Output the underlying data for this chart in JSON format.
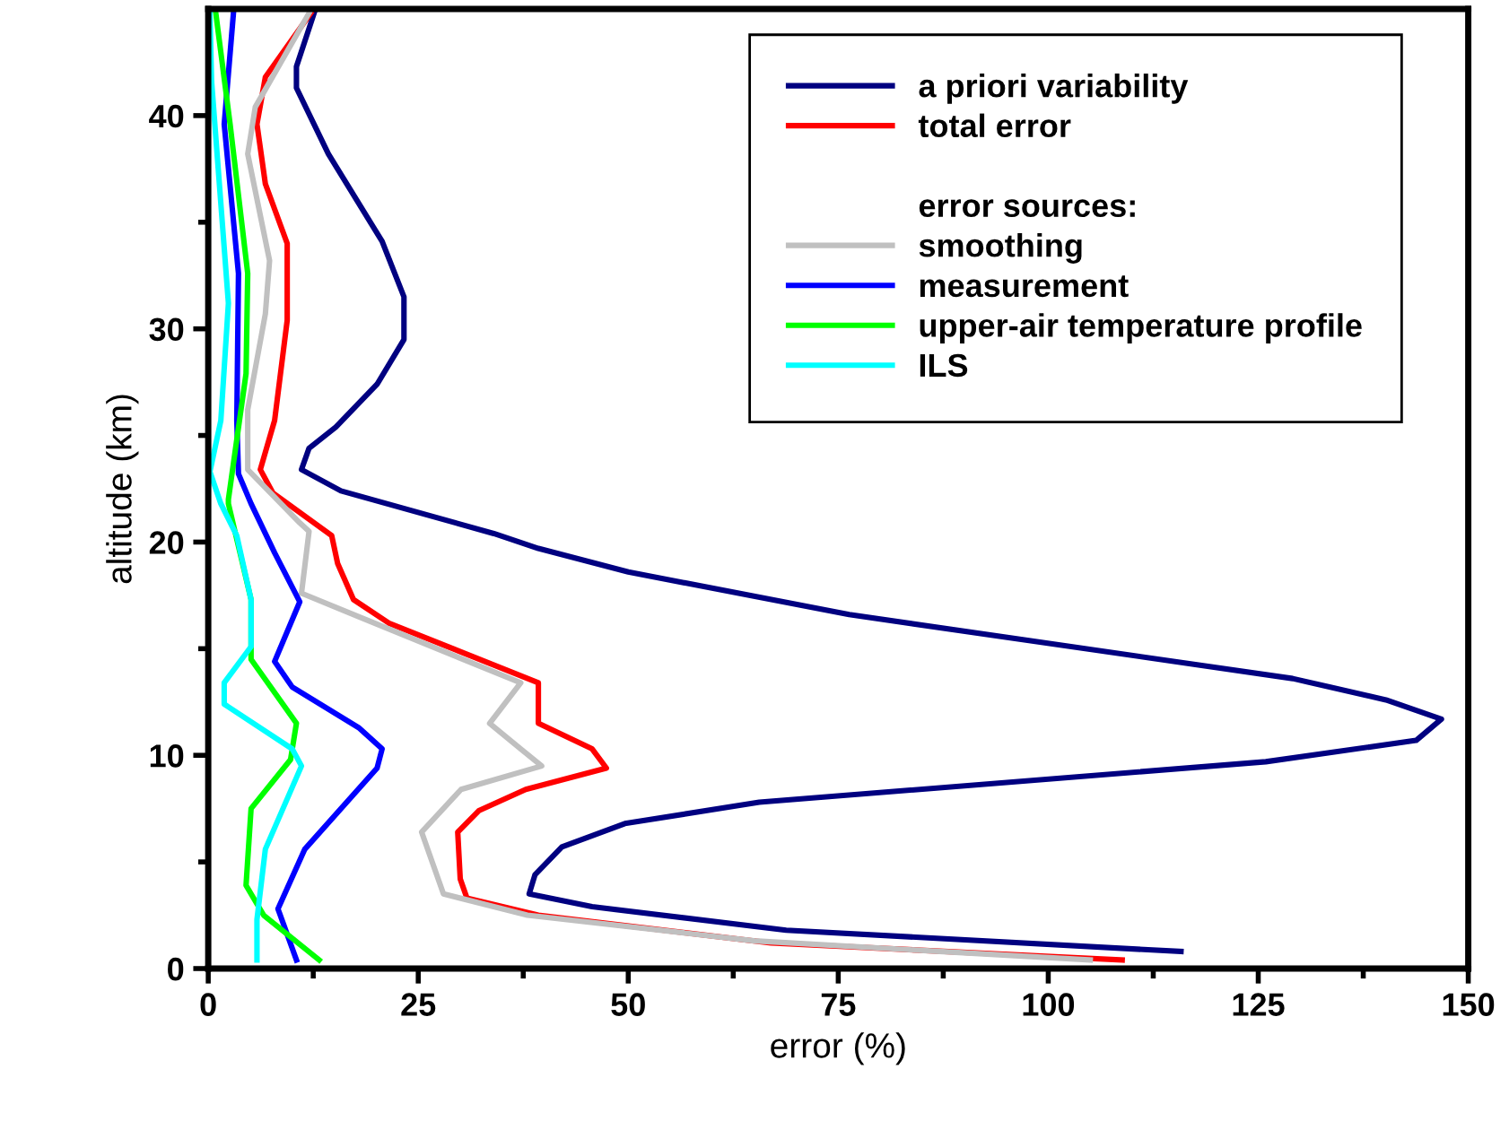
{
  "chart_data": {
    "type": "line",
    "xlabel": "error (%)",
    "ylabel": "altitude (km)",
    "xlim": [
      0,
      150
    ],
    "ylim": [
      0,
      45
    ],
    "xticks": [
      0,
      {
        "value": 12.5,
        "label": null
      },
      25,
      {
        "value": 37.5,
        "label": null
      },
      50,
      {
        "value": 62.5,
        "label": null
      },
      75,
      {
        "value": 87.5,
        "label": null
      },
      100,
      {
        "value": 112.5,
        "label": null
      },
      125,
      {
        "value": 137.5,
        "label": null
      },
      150
    ],
    "yticks": [
      0,
      {
        "value": 5,
        "label": null
      },
      10,
      {
        "value": 15,
        "label": null
      },
      20,
      {
        "value": 25,
        "label": null
      },
      30,
      {
        "value": 35,
        "label": null
      },
      40
    ],
    "grid": false,
    "legend": "top right",
    "marker": "none",
    "line_style": "solid",
    "annotations": [
      "error sources:"
    ],
    "series": [
      {
        "name": "a priori variability",
        "color": "#000080",
        "x": [
          115.8,
          68.8,
          45.7,
          38.2,
          38.9,
          42.1,
          49.6,
          65.6,
          125.9,
          143.8,
          146.8,
          140.2,
          129.1,
          76.3,
          50.0,
          39.3,
          34.0,
          15.8,
          11.1,
          12.0,
          15.2,
          20.1,
          23.3,
          23.3,
          20.7,
          14.3,
          10.5,
          10.5,
          12.6
        ],
        "values": [
          0.8,
          1.8,
          2.9,
          3.5,
          4.4,
          5.7,
          6.8,
          7.8,
          9.7,
          10.7,
          11.7,
          12.6,
          13.6,
          16.6,
          18.6,
          19.7,
          20.4,
          22.4,
          23.4,
          24.4,
          25.4,
          27.4,
          29.5,
          31.5,
          34.1,
          38.2,
          41.3,
          42.3,
          44.8
        ]
      },
      {
        "name": "total error",
        "color": "#ff0000",
        "x": [
          108.8,
          67.0,
          39.3,
          30.8,
          30.0,
          29.7,
          32.2,
          37.8,
          47.4,
          45.7,
          39.3,
          39.3,
          21.5,
          17.3,
          15.4,
          14.7,
          7.7,
          6.2,
          7.9,
          9.4,
          9.4,
          6.8,
          5.8,
          6.8,
          12.2
        ],
        "values": [
          0.4,
          1.2,
          2.5,
          3.3,
          4.2,
          6.4,
          7.4,
          8.4,
          9.4,
          10.3,
          11.5,
          13.4,
          16.2,
          17.3,
          19.0,
          20.3,
          22.3,
          23.4,
          25.7,
          30.4,
          34.0,
          36.8,
          39.6,
          41.8,
          44.8
        ]
      },
      {
        "name": "smoothing",
        "color": "#c0c0c0",
        "x": [
          105.0,
          65.0,
          38.0,
          28.0,
          25.4,
          30.1,
          39.7,
          37.2,
          33.5,
          37.2,
          17.9,
          11.1,
          12.0,
          10.9,
          4.7,
          4.7,
          6.8,
          7.3,
          4.7,
          5.6,
          12.0
        ],
        "values": [
          0.4,
          1.3,
          2.5,
          3.5,
          6.4,
          8.4,
          9.5,
          10.3,
          11.5,
          13.4,
          16.5,
          17.6,
          20.5,
          20.9,
          23.4,
          26.2,
          30.7,
          33.2,
          38.2,
          40.4,
          44.8
        ]
      },
      {
        "name": "measurement",
        "color": "#0000ff",
        "x": [
          10.5,
          8.3,
          11.5,
          20.1,
          20.7,
          17.9,
          10.0,
          7.9,
          10.9,
          7.9,
          5.1,
          3.6,
          3.4,
          3.6,
          1.9,
          3.0
        ],
        "values": [
          0.4,
          2.8,
          5.6,
          9.4,
          10.3,
          11.3,
          13.2,
          14.4,
          17.2,
          19.5,
          21.8,
          23.2,
          25.7,
          32.6,
          39.6,
          44.8
        ]
      },
      {
        "name": "upper-air temperature profile",
        "color": "#00ff00",
        "x": [
          13.2,
          6.6,
          4.5,
          5.1,
          9.8,
          10.5,
          5.1,
          5.1,
          2.4,
          2.4,
          4.5,
          4.7,
          2.6,
          0.9
        ],
        "values": [
          0.4,
          2.5,
          3.9,
          7.5,
          9.8,
          11.5,
          14.5,
          17.3,
          21.8,
          22.0,
          27.9,
          32.6,
          39.6,
          44.8
        ]
      },
      {
        "name": "ILS",
        "color": "#00ffff",
        "x": [
          5.8,
          5.8,
          6.8,
          11.1,
          10.0,
          1.9,
          1.9,
          5.1,
          5.1,
          3.4,
          1.5,
          0.2,
          1.5,
          2.4,
          0.4,
          0.2
        ],
        "values": [
          0.4,
          2.3,
          5.6,
          9.5,
          10.3,
          12.4,
          13.4,
          15.1,
          17.3,
          20.3,
          21.8,
          23.3,
          25.7,
          31.2,
          41.6,
          44.8
        ]
      }
    ]
  }
}
